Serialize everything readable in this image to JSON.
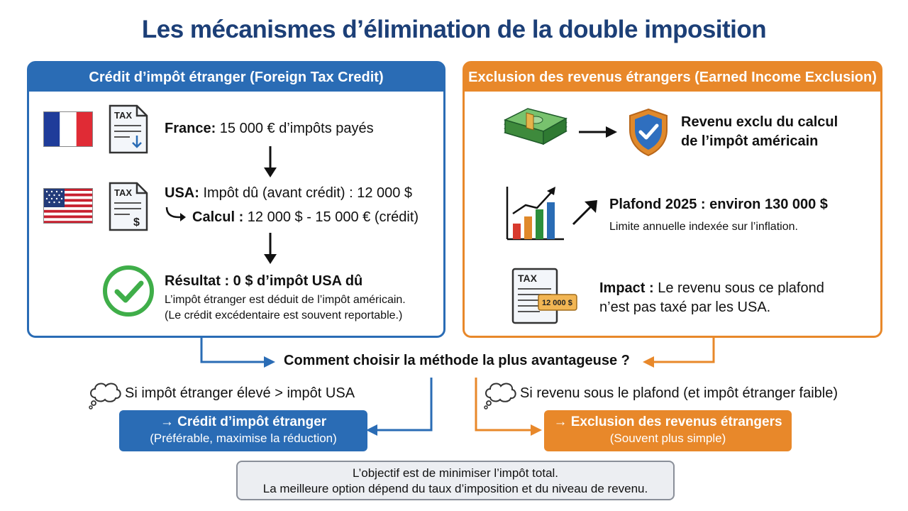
{
  "title": "Les mécanismes d’élimination de la double imposition",
  "left_panel": {
    "header": "Crédit d’impôt étranger (Foreign Tax Credit)",
    "tax_doc_label": "TAX",
    "france_label": "France:",
    "france_text": " 15 000 € d’impôts payés",
    "usa_label": "USA:",
    "usa_text": " Impôt dû (avant crédit) : 12 000 $",
    "calcul_label": "Calcul :",
    "calcul_text": " 12 000 $ - 15 000 € (crédit)",
    "result_title": "Résultat : 0 $ d’impôt USA dû",
    "result_line1": "L’impôt étranger est déduit de l’impôt américain.",
    "result_line2": "(Le crédit excédentaire est souvent reportable.)"
  },
  "right_panel": {
    "header": "Exclusion des revenus étrangers (Earned Income Exclusion)",
    "excluded_line1": "Revenu exclu du calcul",
    "excluded_line2": "de l’impôt américain",
    "plafond_title": "Plafond 2025 : environ 130 000 $",
    "plafond_sub": "Limite annuelle indexée sur l’inflation.",
    "impact_label": "Impact :",
    "impact_text_1": " Le revenu sous ce plafond",
    "impact_text_2": "n’est pas taxé par les USA.",
    "tax_doc_label": "TAX",
    "tax_doc_amount": "12 000 $"
  },
  "question": "Comment choisir la méthode la plus avantageuse ?",
  "left_condition": "Si impôt étranger élevé > impôt USA",
  "right_condition": "Si revenu sous le plafond (et impôt étranger faible)",
  "left_choice": {
    "line1": "→ Crédit d’impôt étranger",
    "line2": "(Préférable, maximise la réduction)"
  },
  "right_choice": {
    "line1": "→ Exclusion des revenus étrangers",
    "line2": "(Souvent plus simple)"
  },
  "conclusion": {
    "line1": "L’objectif est de minimiser l’impôt total.",
    "line2": "La meilleure option dépend du taux d’imposition et du niveau de revenu."
  },
  "colors": {
    "blue": "#2a6cb5",
    "orange": "#e8882a",
    "title": "#1c3f77",
    "green": "#3fae49"
  },
  "icons": [
    "france-flag-icon",
    "usa-flag-icon",
    "tax-document-icon",
    "check-icon",
    "money-stack-icon",
    "shield-check-icon",
    "bar-chart-icon",
    "thought-bubble-icon"
  ]
}
